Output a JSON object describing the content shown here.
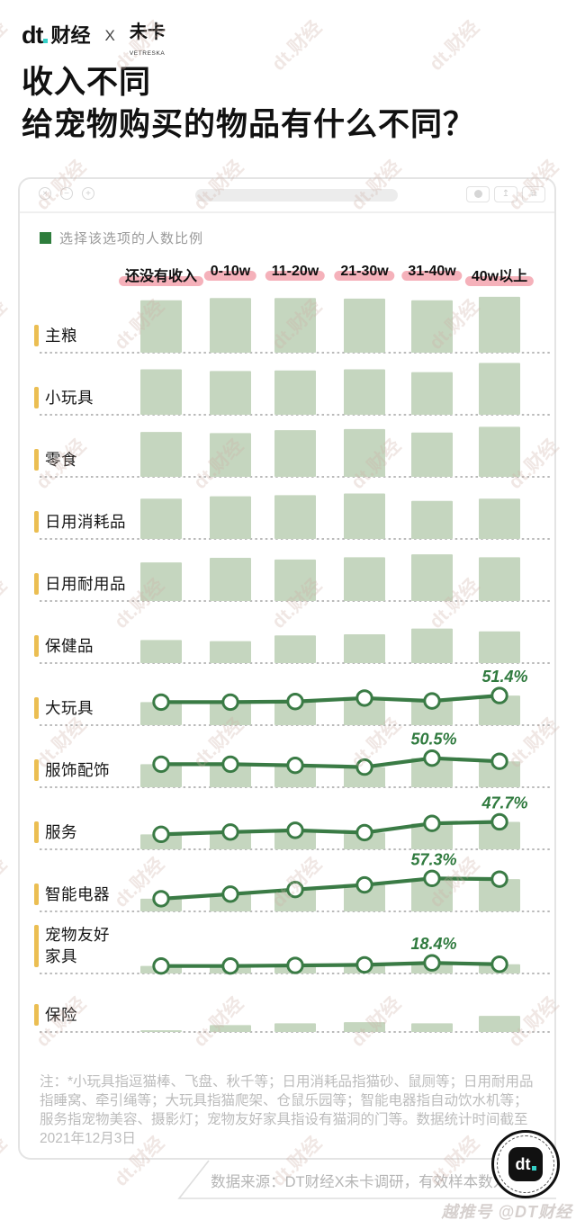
{
  "header": {
    "brand_dt": "dt",
    "brand_left": "财经",
    "separator": "X",
    "brand_right": "未卡",
    "brand_right_sub": "VETRESKA"
  },
  "title": {
    "line1": "收入不同",
    "line2": "给宠物购买的物品有什么不同？"
  },
  "window": {
    "left_buttons": [
      "close",
      "minimize",
      "expand"
    ],
    "right_buttons": [
      "record",
      "share",
      "new-window"
    ]
  },
  "legend": {
    "label": "选择该选项的人数比例"
  },
  "chart_data": {
    "type": "bar",
    "subtype": "small-multiple rows of bars, some rows with overlaid trend line",
    "unit": "%",
    "legend": "选择该选项的人数比例",
    "categories": [
      "还没有收入",
      "0-10w",
      "11-20w",
      "21-30w",
      "31-40w",
      "40w以上"
    ],
    "values_estimated_from_bar_heights": true,
    "rows": [
      {
        "label": "主粮",
        "lines": [
          "主粮"
        ],
        "values": [
          91,
          95,
          95,
          94,
          91,
          97
        ],
        "line": false
      },
      {
        "label": "小玩具",
        "lines": [
          "小玩具"
        ],
        "values": [
          79,
          76,
          77,
          79,
          74,
          90
        ],
        "line": false
      },
      {
        "label": "零食",
        "lines": [
          "零食"
        ],
        "values": [
          78,
          76,
          81,
          83,
          77,
          87
        ],
        "line": false
      },
      {
        "label": "日用消耗品",
        "lines": [
          "日用消耗品"
        ],
        "values": [
          70,
          74,
          76,
          79,
          66,
          70
        ],
        "line": false
      },
      {
        "label": "日用耐用品",
        "lines": [
          "日用耐用品"
        ],
        "values": [
          67,
          75,
          72,
          76,
          81,
          76
        ],
        "line": false
      },
      {
        "label": "保健品",
        "lines": [
          "保健品"
        ],
        "values": [
          40,
          38,
          48,
          50,
          60,
          55
        ],
        "line": false
      },
      {
        "label": "大玩具",
        "lines": [
          "大玩具"
        ],
        "values": [
          40,
          40,
          41,
          47,
          42,
          51.4
        ],
        "line": true,
        "annotation": {
          "text": "51.4%",
          "point": 5
        }
      },
      {
        "label": "服饰配饰",
        "lines": [
          "服饰配饰"
        ],
        "values": [
          40,
          40,
          38,
          35,
          50.5,
          45
        ],
        "line": true,
        "annotation": {
          "text": "50.5%",
          "point": 4
        }
      },
      {
        "label": "服务",
        "lines": [
          "服务"
        ],
        "values": [
          26,
          30,
          33,
          29,
          45,
          47.7
        ],
        "line": true,
        "annotation": {
          "text": "47.7%",
          "point": 5
        }
      },
      {
        "label": "智能电器",
        "lines": [
          "智能电器"
        ],
        "values": [
          22,
          30,
          38,
          46,
          57.3,
          56
        ],
        "line": true,
        "annotation": {
          "text": "57.3%",
          "point": 4
        }
      },
      {
        "label": "宠物友好家具",
        "lines": [
          "宠物友好",
          "家具"
        ],
        "values": [
          13,
          13,
          14,
          15,
          18.4,
          16
        ],
        "line": true,
        "annotation": {
          "text": "18.4%",
          "point": 4
        }
      },
      {
        "label": "保险",
        "lines": [
          "保险"
        ],
        "values": [
          3,
          12,
          15,
          17,
          15,
          28
        ],
        "line": false
      }
    ],
    "annotated_values": {
      "大玩具": 51.4,
      "服饰配饰": 50.5,
      "服务": 47.7,
      "智能电器": 57.3,
      "宠物友好家具": 18.4
    }
  },
  "note": {
    "text": "注：*小玩具指逗猫棒、飞盘、秋千等；日用消耗品指猫砂、鼠厕等；日用耐用品指睡窝、牵引绳等；大玩具指猫爬架、仓鼠乐园等；智能电器指自动饮水机等；服务指宠物美容、摄影灯；宠物友好家具指设有猫洞的门等。数据统计时间截至2021年12月3日"
  },
  "source": {
    "text": "数据来源：DT财经X未卡调研，有效样本数为2213"
  },
  "badge": {
    "text": "dt"
  },
  "watermark": {
    "diagonal": "dt.财经",
    "bottom": "越推号 @DT财经"
  },
  "colors": {
    "bar": "#c5d6bf",
    "line": "#3a7b45",
    "annotation": "#2f7a3e",
    "legend_square": "#2e7d3c",
    "header_pill": "#f5b1ba",
    "row_marker": "#ebbe52",
    "teal_dot": "#35d0c8",
    "note_gray": "#bcbcbc"
  }
}
